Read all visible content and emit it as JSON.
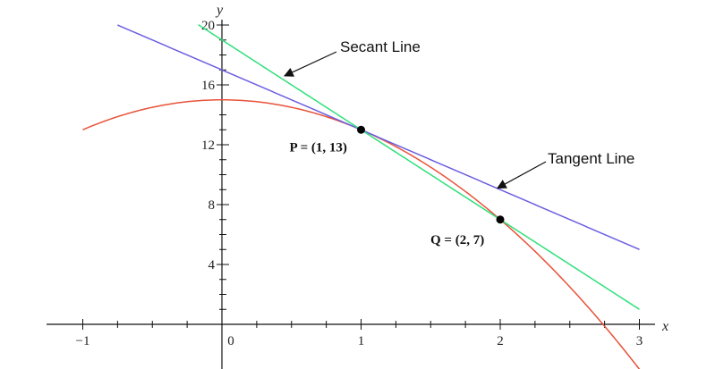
{
  "chart_data": {
    "type": "line",
    "title": "",
    "xlabel": "x",
    "ylabel": "y",
    "xlim": [
      -1,
      3
    ],
    "ylim": [
      0,
      20
    ],
    "x_ticks": [
      {
        "value": -1,
        "label": "−1"
      },
      {
        "value": 0,
        "label": "0"
      },
      {
        "value": 1,
        "label": "1"
      },
      {
        "value": 2,
        "label": "2"
      },
      {
        "value": 3,
        "label": "3"
      }
    ],
    "y_ticks": [
      {
        "value": 4,
        "label": "4"
      },
      {
        "value": 8,
        "label": "8"
      },
      {
        "value": 12,
        "label": "12"
      },
      {
        "value": 16,
        "label": "16"
      },
      {
        "value": 20,
        "label": "20"
      }
    ],
    "grid": false,
    "series": [
      {
        "kind": "curve",
        "color": "#e8523a",
        "function": "15 - 2x^2",
        "x_range": [
          -1,
          3
        ]
      },
      {
        "kind": "tangent",
        "color": "#6b5fe0",
        "function": "17 - 4x",
        "x_range": [
          -0.75,
          3
        ]
      },
      {
        "kind": "secant",
        "color": "#2ee07a",
        "function": "19 - 6x",
        "x_range": [
          -0.17,
          3
        ]
      }
    ],
    "points": [
      {
        "name": "P",
        "x": 1,
        "y": 13,
        "label": "P = (1, 13)"
      },
      {
        "name": "Q",
        "x": 2,
        "y": 7,
        "label": "Q = (2, 7)"
      }
    ],
    "annotations": [
      {
        "text": "Secant Line",
        "target": [
          0.45,
          16.6
        ]
      },
      {
        "text": "Tangent Line",
        "target": [
          1.98,
          9.1
        ]
      }
    ]
  }
}
